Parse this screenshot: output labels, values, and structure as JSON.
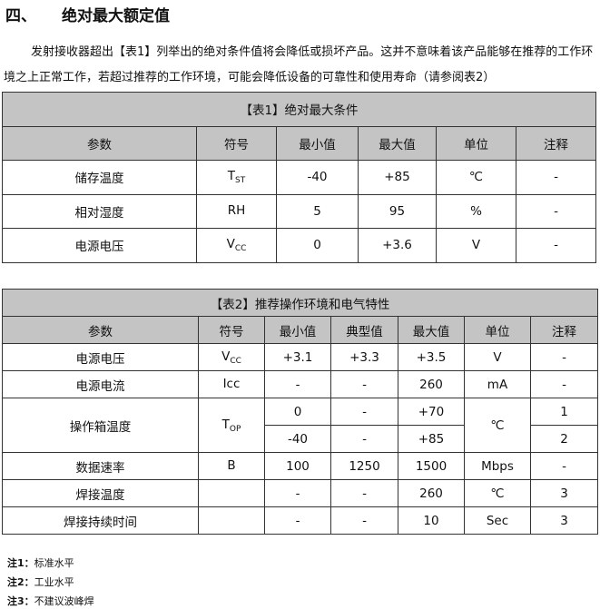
{
  "heading": {
    "number": "四、",
    "title": "绝对最大额定值"
  },
  "paragraph": "发射接收器超出【表1】列举出的绝对条件值将会降低或损坏产品。这并不意味着该产品能够在推荐的工作环境之上正常工作，若超过推荐的工作环境，可能会降低设备的可靠性和使用寿命（请参阅表2）",
  "table1": {
    "title": "【表1】绝对最大条件",
    "headers": [
      "参数",
      "符号",
      "最小值",
      "最大值",
      "单位",
      "注释"
    ],
    "rows": [
      {
        "param": "储存温度",
        "sym": "T",
        "sub": "ST",
        "min": "-40",
        "max": "+85",
        "unit": "℃",
        "note": "-"
      },
      {
        "param": "相对湿度",
        "sym": "RH",
        "sub": "",
        "min": "5",
        "max": "95",
        "unit": "%",
        "note": "-"
      },
      {
        "param": "电源电压",
        "sym": "V",
        "sub": "CC",
        "min": "0",
        "max": "+3.6",
        "unit": "V",
        "note": "-"
      }
    ]
  },
  "table2": {
    "title": "【表2】推荐操作环境和电气特性",
    "headers": [
      "参数",
      "符号",
      "最小值",
      "典型值",
      "最大值",
      "单位",
      "注释"
    ],
    "rows": [
      {
        "param": "电源电压",
        "sym": "V",
        "sub": "CC",
        "min": "+3.1",
        "typ": "+3.3",
        "max": "+3.5",
        "unit": "V",
        "note": "-"
      },
      {
        "param": "电源电流",
        "sym": "Icc",
        "sub": "",
        "min": "-",
        "typ": "-",
        "max": "260",
        "unit": "mA",
        "note": "-"
      },
      {
        "param": "操作箱温度",
        "sym": "T",
        "sub": "OP",
        "min": "0",
        "typ": "-",
        "max": "+70",
        "unit": "℃",
        "note": "1"
      },
      {
        "min": "-40",
        "typ": "-",
        "max": "+85",
        "note": "2"
      },
      {
        "param": "数据速率",
        "sym": "B",
        "sub": "",
        "min": "100",
        "typ": "1250",
        "max": "1500",
        "unit": "Mbps",
        "note": "-"
      },
      {
        "param": "焊接温度",
        "sym": "",
        "sub": "",
        "min": "-",
        "typ": "-",
        "max": "260",
        "unit": "℃",
        "note": "3"
      },
      {
        "param": "焊接持续时间",
        "sym": "",
        "sub": "",
        "min": "-",
        "typ": "-",
        "max": "10",
        "unit": "Sec",
        "note": "3"
      }
    ]
  },
  "notes": [
    {
      "label": "注1：",
      "text": "标准水平"
    },
    {
      "label": "注2：",
      "text": "工业水平"
    },
    {
      "label": "注3：",
      "text": "不建议波峰焊"
    }
  ]
}
